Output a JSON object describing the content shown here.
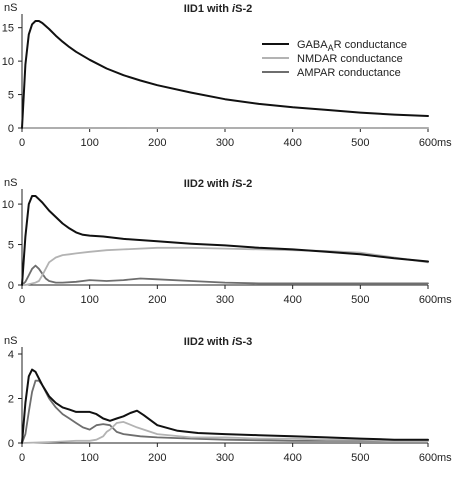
{
  "chart_data": [
    {
      "type": "line",
      "title": "IID1 with iS-2",
      "title_parts": [
        "IID1 with ",
        "i",
        "S-2"
      ],
      "ylabel": "nS",
      "xunit": "ms",
      "ylim": [
        0,
        16
      ],
      "xlim": [
        0,
        600
      ],
      "yticks": [
        "0",
        "5",
        "10",
        "15"
      ],
      "ytick_values": [
        0,
        5,
        10,
        15
      ],
      "xticks": [
        "0",
        "100",
        "200",
        "300",
        "400",
        "500",
        "600"
      ],
      "xtick_values": [
        0,
        100,
        200,
        300,
        400,
        500,
        600
      ],
      "legend": {
        "placement": "top-right",
        "items": [
          {
            "label": "GABA",
            "sub": "A",
            "suffix": "R conductance",
            "color": "#111111"
          },
          {
            "label": "NMDAR conductance",
            "sub": "",
            "suffix": "",
            "color": "#b3b3b3"
          },
          {
            "label": "AMPAR conductance",
            "sub": "",
            "suffix": "",
            "color": "#6e6e6e"
          }
        ]
      },
      "series": [
        {
          "color": "#111111",
          "x": [
            0,
            5,
            10,
            15,
            20,
            25,
            30,
            40,
            50,
            60,
            70,
            80,
            100,
            125,
            150,
            175,
            200,
            250,
            300,
            350,
            400,
            450,
            500,
            550,
            600
          ],
          "y": [
            0,
            9.5,
            14,
            15.5,
            16,
            16,
            15.7,
            14.8,
            13.8,
            12.9,
            12.1,
            11.4,
            10.2,
            8.9,
            7.9,
            7.1,
            6.4,
            5.3,
            4.3,
            3.6,
            3.1,
            2.7,
            2.3,
            2.0,
            1.8
          ]
        },
        {
          "color": "#b3b3b3",
          "x": [
            0,
            600
          ],
          "y": [
            0,
            0
          ]
        },
        {
          "color": "#6e6e6e",
          "x": [
            0,
            600
          ],
          "y": [
            0,
            0
          ]
        }
      ]
    },
    {
      "type": "line",
      "title": "IID2 with iS-2",
      "title_parts": [
        "IID2 with ",
        "i",
        "S-2"
      ],
      "ylabel": "nS",
      "xunit": "ms",
      "ylim": [
        0,
        11
      ],
      "xlim": [
        0,
        600
      ],
      "yticks": [
        "0",
        "5",
        "10"
      ],
      "ytick_values": [
        0,
        5,
        10
      ],
      "xticks": [
        "0",
        "100",
        "200",
        "300",
        "400",
        "500",
        "600"
      ],
      "xtick_values": [
        0,
        100,
        200,
        300,
        400,
        500,
        600
      ],
      "series": [
        {
          "color": "#111111",
          "x": [
            0,
            5,
            10,
            15,
            20,
            25,
            30,
            40,
            50,
            60,
            70,
            80,
            90,
            100,
            120,
            150,
            200,
            250,
            300,
            350,
            400,
            450,
            500,
            550,
            600
          ],
          "y": [
            0,
            6,
            10,
            11,
            11,
            10.6,
            10.2,
            9.2,
            8.4,
            7.6,
            7,
            6.5,
            6.2,
            6.1,
            6,
            5.7,
            5.4,
            5.1,
            4.9,
            4.6,
            4.4,
            4.1,
            3.8,
            3.3,
            2.9
          ]
        },
        {
          "color": "#b3b3b3",
          "x": [
            0,
            5,
            10,
            20,
            25,
            30,
            35,
            40,
            50,
            60,
            70,
            80,
            100,
            125,
            150,
            200,
            250,
            300,
            350,
            400,
            450,
            500,
            550,
            600
          ],
          "y": [
            0,
            0,
            0.1,
            0.3,
            0.5,
            1.2,
            2,
            2.8,
            3.4,
            3.7,
            3.8,
            3.9,
            4.1,
            4.3,
            4.4,
            4.6,
            4.6,
            4.5,
            4.4,
            4.3,
            4.2,
            4.0,
            3.4,
            2.8
          ]
        },
        {
          "color": "#6e6e6e",
          "x": [
            0,
            5,
            10,
            15,
            20,
            25,
            30,
            35,
            40,
            50,
            60,
            80,
            100,
            125,
            150,
            175,
            200,
            250,
            300,
            350,
            400,
            450,
            500,
            550,
            600
          ],
          "y": [
            0,
            0.4,
            1.2,
            2,
            2.4,
            2,
            1.4,
            0.8,
            0.5,
            0.3,
            0.3,
            0.4,
            0.6,
            0.5,
            0.6,
            0.8,
            0.7,
            0.5,
            0.3,
            0.2,
            0.2,
            0.2,
            0.2,
            0.2,
            0.2
          ]
        }
      ]
    },
    {
      "type": "line",
      "title": "IID2 with iS-3",
      "title_parts": [
        "IID2 with ",
        "i",
        "S-3"
      ],
      "ylabel": "nS",
      "xunit": "ms",
      "ylim": [
        0,
        4
      ],
      "xlim": [
        0,
        600
      ],
      "yticks": [
        "0",
        "2",
        "4"
      ],
      "ytick_values": [
        0,
        2,
        4
      ],
      "xticks": [
        "0",
        "100",
        "200",
        "300",
        "400",
        "500",
        "600"
      ],
      "xtick_values": [
        0,
        100,
        200,
        300,
        400,
        500,
        600
      ],
      "series": [
        {
          "color": "#111111",
          "x": [
            0,
            5,
            10,
            15,
            20,
            25,
            30,
            40,
            50,
            60,
            70,
            80,
            90,
            100,
            110,
            120,
            130,
            140,
            150,
            160,
            170,
            180,
            200,
            230,
            260,
            300,
            350,
            400,
            450,
            500,
            550,
            600
          ],
          "y": [
            0,
            1.8,
            3,
            3.3,
            3.2,
            2.9,
            2.6,
            2.1,
            1.8,
            1.6,
            1.5,
            1.4,
            1.4,
            1.4,
            1.3,
            1.1,
            1.0,
            1.1,
            1.2,
            1.35,
            1.45,
            1.25,
            0.8,
            0.55,
            0.45,
            0.4,
            0.35,
            0.3,
            0.25,
            0.2,
            0.15,
            0.15
          ]
        },
        {
          "color": "#b3b3b3",
          "x": [
            0,
            50,
            80,
            100,
            110,
            120,
            125,
            130,
            140,
            150,
            170,
            200,
            250,
            300,
            350,
            400,
            450,
            500,
            550,
            600
          ],
          "y": [
            0,
            0.05,
            0.1,
            0.1,
            0.15,
            0.3,
            0.5,
            0.6,
            0.9,
            0.95,
            0.7,
            0.4,
            0.25,
            0.25,
            0.2,
            0.2,
            0.15,
            0.15,
            0.1,
            0.1
          ]
        },
        {
          "color": "#6e6e6e",
          "x": [
            0,
            5,
            10,
            15,
            20,
            25,
            30,
            35,
            40,
            50,
            60,
            70,
            80,
            90,
            100,
            110,
            120,
            130,
            140,
            150,
            175,
            200,
            250,
            300,
            400,
            500,
            600
          ],
          "y": [
            0,
            0.4,
            1.4,
            2.3,
            2.8,
            2.8,
            2.6,
            2.3,
            2.0,
            1.6,
            1.3,
            1.1,
            0.9,
            0.7,
            0.6,
            0.8,
            0.85,
            0.8,
            0.5,
            0.4,
            0.3,
            0.25,
            0.2,
            0.15,
            0.1,
            0.1,
            0.1
          ]
        }
      ]
    }
  ]
}
